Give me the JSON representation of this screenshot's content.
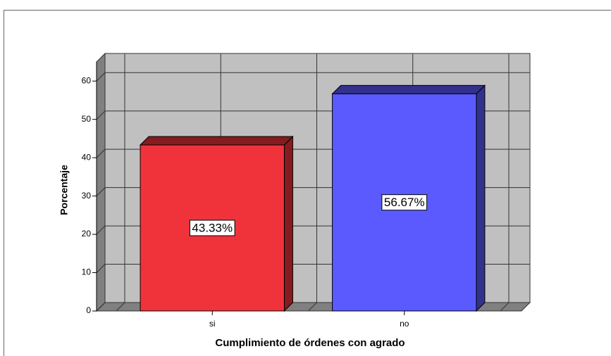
{
  "chart_data": {
    "type": "bar3d",
    "x_label": "Cumplimiento de órdenes con agrado",
    "y_label": "Porcentaje",
    "categories": [
      "si",
      "no"
    ],
    "values": [
      43.33,
      56.67
    ],
    "value_labels": [
      "43.33%",
      "56.67%"
    ],
    "colors": [
      "#f0333a",
      "#5a5aff"
    ],
    "ylim": [
      0,
      65
    ],
    "yticks": [
      0,
      10,
      20,
      30,
      40,
      50,
      60
    ],
    "grid": true
  }
}
